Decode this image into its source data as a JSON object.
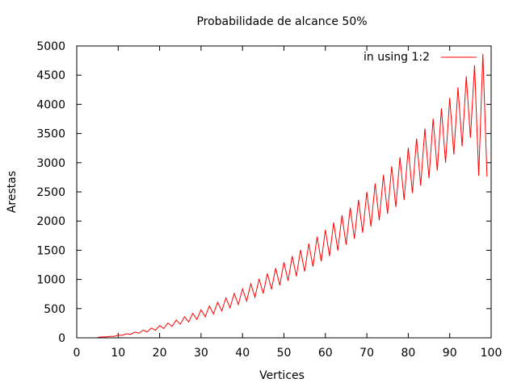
{
  "chart_data": {
    "type": "line",
    "title": "Probabilidade de alcance 50%",
    "xlabel": "Vertices",
    "ylabel": "Arestas",
    "xlim": [
      0,
      100
    ],
    "ylim": [
      0,
      5000
    ],
    "xticks": [
      "0",
      "10",
      "20",
      "30",
      "40",
      "50",
      "60",
      "70",
      "80",
      "90",
      "100"
    ],
    "yticks": [
      "0",
      "500",
      "1000",
      "1500",
      "2000",
      "2500",
      "3000",
      "3500",
      "4000",
      "4500",
      "5000"
    ],
    "legend_position": "top-right",
    "grid": false,
    "series": [
      {
        "name": "in using 1:2",
        "color": "#ff0000",
        "x": [
          5,
          6,
          7,
          8,
          9,
          10,
          11,
          12,
          13,
          14,
          15,
          16,
          17,
          18,
          19,
          20,
          21,
          22,
          23,
          24,
          25,
          26,
          27,
          28,
          29,
          30,
          31,
          32,
          33,
          34,
          35,
          36,
          37,
          38,
          39,
          40,
          41,
          42,
          43,
          44,
          45,
          46,
          47,
          48,
          49,
          50,
          51,
          52,
          53,
          54,
          55,
          56,
          57,
          58,
          59,
          60,
          61,
          62,
          63,
          64,
          65,
          66,
          67,
          68,
          69,
          70,
          71,
          72,
          73,
          74,
          75,
          76,
          77,
          78,
          79,
          80,
          81,
          82,
          83,
          84,
          85,
          86,
          87,
          88,
          89,
          90,
          91,
          92,
          93,
          94,
          95,
          96,
          97,
          98,
          99
        ],
        "y": [
          5,
          15,
          15,
          24,
          24,
          46,
          43,
          70,
          58,
          98,
          78,
          131,
          102,
          168,
          130,
          210,
          160,
          255,
          195,
          305,
          232,
          360,
          270,
          420,
          315,
          480,
          360,
          545,
          410,
          610,
          460,
          685,
          515,
          760,
          570,
          840,
          630,
          925,
          695,
          1010,
          760,
          1100,
          830,
          1195,
          900,
          1295,
          975,
          1400,
          1055,
          1505,
          1135,
          1615,
          1220,
          1730,
          1310,
          1850,
          1400,
          1975,
          1495,
          2100,
          1595,
          2230,
          1695,
          2365,
          1800,
          2500,
          1905,
          2645,
          2015,
          2790,
          2125,
          2940,
          2240,
          3095,
          2360,
          3255,
          2480,
          3415,
          2605,
          3585,
          2735,
          3755,
          2865,
          3930,
          3000,
          4110,
          3140,
          4290,
          3280,
          4480,
          3425,
          4670,
          2775,
          4860,
          2760
        ]
      }
    ]
  }
}
